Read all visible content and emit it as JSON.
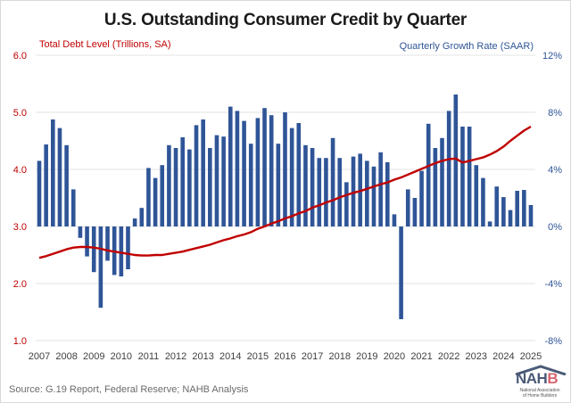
{
  "chart_data": {
    "type": "bar+line",
    "title": "U.S. Outstanding Consumer Credit by Quarter",
    "left_axis": {
      "label": "Total Debt Level (Trillions, SA)",
      "range": [
        1.0,
        6.0
      ],
      "ticks": [
        "1.0",
        "2.0",
        "3.0",
        "4.0",
        "5.0",
        "6.0"
      ],
      "color": "#c00000"
    },
    "right_axis": {
      "label": "Quarterly Growth Rate (SAAR)",
      "range": [
        -8,
        12
      ],
      "ticks": [
        "-8%",
        "-4%",
        "0%",
        "4%",
        "8%",
        "12%"
      ],
      "color": "#2f5597"
    },
    "x_tick_labels": [
      "2007",
      "2008",
      "2009",
      "2010",
      "2011",
      "2012",
      "2013",
      "2014",
      "2015",
      "2016",
      "2017",
      "2018",
      "2019",
      "2020",
      "2021",
      "2022",
      "2023",
      "2024",
      "2025"
    ],
    "grid": "horizontal",
    "period": "2007 Q1 - 2025 Q1 (quarterly)",
    "series": [
      {
        "name": "Quarterly Growth Rate (SAAR, %)",
        "type": "bar",
        "axis": "right",
        "color": "#2f5597",
        "values": [
          4.6,
          5.75,
          7.5,
          6.9,
          5.7,
          2.6,
          -0.8,
          -2.1,
          -3.2,
          -5.7,
          -2.4,
          -3.4,
          -3.5,
          -3.0,
          0.56,
          1.3,
          4.1,
          3.4,
          4.3,
          5.7,
          5.5,
          6.25,
          5.4,
          7.1,
          7.5,
          5.5,
          6.4,
          6.3,
          8.4,
          8.1,
          7.4,
          5.8,
          7.6,
          8.3,
          7.8,
          5.8,
          8.0,
          6.9,
          7.25,
          5.7,
          5.5,
          4.8,
          4.8,
          6.2,
          4.8,
          3.1,
          4.9,
          5.1,
          4.6,
          4.2,
          5.2,
          4.5,
          0.85,
          -6.5,
          2.6,
          2.0,
          3.9,
          7.2,
          5.5,
          6.2,
          8.1,
          9.25,
          7.0,
          7.0,
          4.3,
          3.4,
          0.35,
          2.8,
          2.06,
          1.15,
          2.5,
          2.56,
          1.5
        ]
      },
      {
        "name": "Total Debt Level (Trillions, SA)",
        "type": "line",
        "axis": "left",
        "color": "#c00000",
        "values": [
          2.45,
          2.48,
          2.52,
          2.56,
          2.6,
          2.63,
          2.64,
          2.64,
          2.63,
          2.61,
          2.58,
          2.56,
          2.54,
          2.52,
          2.5,
          2.49,
          2.49,
          2.5,
          2.5,
          2.52,
          2.54,
          2.56,
          2.59,
          2.62,
          2.65,
          2.68,
          2.72,
          2.76,
          2.79,
          2.83,
          2.86,
          2.9,
          2.96,
          3.0,
          3.05,
          3.09,
          3.14,
          3.18,
          3.23,
          3.27,
          3.33,
          3.37,
          3.42,
          3.46,
          3.51,
          3.55,
          3.59,
          3.62,
          3.66,
          3.7,
          3.74,
          3.77,
          3.82,
          3.86,
          3.91,
          3.96,
          4.01,
          4.06,
          4.11,
          4.15,
          4.18,
          4.19,
          4.12,
          4.15,
          4.18,
          4.21,
          4.26,
          4.32,
          4.4,
          4.5,
          4.59,
          4.68,
          4.75
        ]
      }
    ]
  },
  "footer": {
    "source": "Source: G.19 Report, Federal Reserve; NAHB Analysis",
    "logo_main_a": "NAH",
    "logo_main_b": "B",
    "logo_sub_1": "National Association",
    "logo_sub_2": "of Home Builders"
  }
}
